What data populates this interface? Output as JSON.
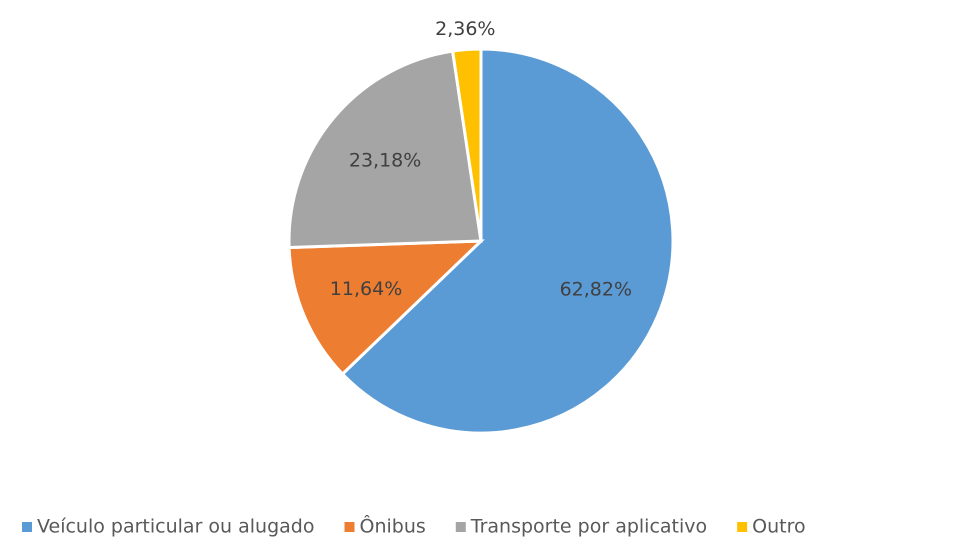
{
  "chart_data": {
    "type": "pie",
    "categories": [
      "Veículo particular ou alugado",
      "Ônibus",
      "Transporte por aplicativo",
      "Outro"
    ],
    "values": [
      62.82,
      11.64,
      23.18,
      2.36
    ],
    "value_labels": [
      "62,82%",
      "11,64%",
      "23,18%",
      "2,36%"
    ],
    "colors": [
      "#5b9bd5",
      "#ed7d31",
      "#a5a5a5",
      "#ffc000"
    ],
    "legend": "bottom"
  }
}
